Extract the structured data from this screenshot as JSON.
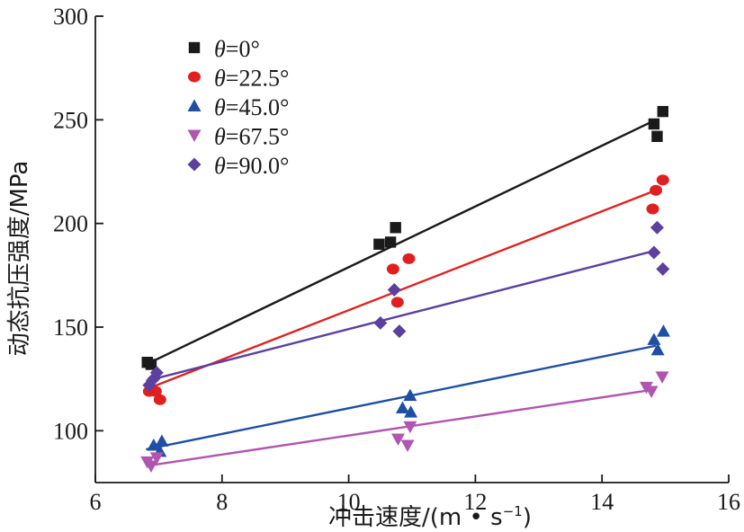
{
  "chart_data": {
    "type": "scatter",
    "xlabel": "冲击速度/(m • s",
    "xlabel_sup": "−1",
    "xlabel_end": ")",
    "ylabel": "动态抗压强度/MPa",
    "xlim": [
      6,
      16
    ],
    "ylim": [
      75,
      300
    ],
    "x_ticks": [
      6,
      8,
      10,
      12,
      14,
      16
    ],
    "y_ticks": [
      100,
      150,
      200,
      250,
      300
    ],
    "grid": false,
    "legend_position": "top-left",
    "series": [
      {
        "name": "θ=0°",
        "legend_symbol": "θ",
        "legend_value": "=0°",
        "color": "#1a1a1a",
        "marker": "square",
        "points": [
          [
            6.82,
            133
          ],
          [
            6.88,
            132
          ],
          [
            10.48,
            190
          ],
          [
            10.66,
            191
          ],
          [
            10.74,
            198
          ],
          [
            14.82,
            248
          ],
          [
            14.87,
            242
          ],
          [
            14.96,
            254
          ]
        ],
        "fit": [
          [
            6.8,
            132
          ],
          [
            14.85,
            250
          ]
        ]
      },
      {
        "name": "θ=22.5°",
        "legend_symbol": "θ",
        "legend_value": "=22.5°",
        "color": "#e02020",
        "marker": "circle",
        "points": [
          [
            6.85,
            119
          ],
          [
            6.95,
            119
          ],
          [
            7.02,
            115
          ],
          [
            10.7,
            178
          ],
          [
            10.77,
            162
          ],
          [
            10.95,
            183
          ],
          [
            14.8,
            207
          ],
          [
            14.85,
            216
          ],
          [
            14.96,
            221
          ]
        ],
        "fit": [
          [
            6.8,
            120
          ],
          [
            14.85,
            216
          ]
        ]
      },
      {
        "name": "θ=45.0°",
        "legend_symbol": "θ",
        "legend_value": "=45.0°",
        "color": "#1f4fa3",
        "marker": "triangle-up",
        "points": [
          [
            6.92,
            93
          ],
          [
            7.02,
            90
          ],
          [
            7.05,
            95
          ],
          [
            10.85,
            111
          ],
          [
            10.97,
            117
          ],
          [
            10.98,
            109
          ],
          [
            14.82,
            144
          ],
          [
            14.88,
            139
          ],
          [
            14.97,
            148
          ]
        ],
        "fit": [
          [
            6.8,
            91
          ],
          [
            14.85,
            141
          ]
        ]
      },
      {
        "name": "θ=67.5°",
        "legend_symbol": "θ",
        "legend_value": "=67.5°",
        "color": "#b055b0",
        "marker": "triangle-down",
        "points": [
          [
            6.82,
            85
          ],
          [
            6.88,
            83
          ],
          [
            6.97,
            87
          ],
          [
            10.78,
            96
          ],
          [
            10.93,
            93
          ],
          [
            10.97,
            102
          ],
          [
            14.7,
            121
          ],
          [
            14.78,
            119
          ],
          [
            14.95,
            126
          ]
        ],
        "fit": [
          [
            6.8,
            83
          ],
          [
            14.85,
            120
          ]
        ]
      },
      {
        "name": "θ=90.0°",
        "legend_symbol": "θ",
        "legend_value": "=90.0°",
        "color": "#5b40a0",
        "marker": "diamond",
        "points": [
          [
            6.85,
            122
          ],
          [
            6.92,
            125
          ],
          [
            6.97,
            128
          ],
          [
            10.5,
            152
          ],
          [
            10.72,
            168
          ],
          [
            10.8,
            148
          ],
          [
            14.82,
            186
          ],
          [
            14.87,
            198
          ],
          [
            14.96,
            178
          ]
        ],
        "fit": [
          [
            6.8,
            124
          ],
          [
            14.85,
            187
          ]
        ]
      }
    ]
  }
}
